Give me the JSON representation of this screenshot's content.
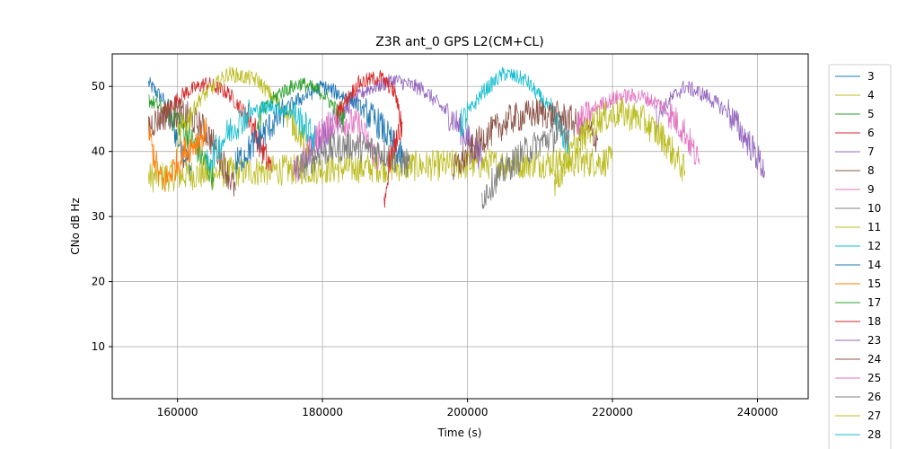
{
  "chart_data": {
    "type": "line",
    "title": "Z3R ant_0 GPS L2(CM+CL)",
    "xlabel": "Time (s)",
    "ylabel": "CNo dB Hz",
    "xlim": [
      151000,
      247000
    ],
    "ylim": [
      2,
      55
    ],
    "xticks": [
      160000,
      180000,
      200000,
      220000,
      240000
    ],
    "xtick_labels": [
      "160000",
      "180000",
      "200000",
      "220000",
      "240000"
    ],
    "yticks": [
      10,
      20,
      30,
      40,
      50
    ],
    "ytick_labels": [
      "10",
      "20",
      "30",
      "40",
      "50"
    ],
    "grid": true,
    "legend_position": "right, outside plot",
    "series": [
      {
        "name": "3",
        "color": "#1f77b4",
        "points": [
          [
            156000,
            50.5
          ],
          [
            158000,
            48
          ],
          [
            160000,
            42
          ],
          [
            162000,
            37
          ]
        ]
      },
      {
        "name": "4",
        "color": "#bcbd22",
        "points": [
          [
            156000,
            36
          ],
          [
            170000,
            37
          ],
          [
            185000,
            37.5
          ],
          [
            200000,
            38
          ],
          [
            220000,
            38.5
          ]
        ]
      },
      {
        "name": "5",
        "color": "#2ca02c",
        "points": [
          [
            156000,
            48
          ],
          [
            160000,
            45
          ],
          [
            163000,
            40
          ],
          [
            165000,
            36
          ]
        ]
      },
      {
        "name": "6",
        "color": "#d62728",
        "points": [
          [
            158000,
            46
          ],
          [
            161000,
            49
          ],
          [
            164000,
            50.5
          ],
          [
            167000,
            49
          ],
          [
            170000,
            45
          ],
          [
            173000,
            37
          ]
        ]
      },
      {
        "name": "7",
        "color": "#9467bd",
        "points": [
          [
            178000,
            40
          ],
          [
            182000,
            45
          ],
          [
            186000,
            49.5
          ],
          [
            190000,
            51
          ],
          [
            194000,
            49.5
          ],
          [
            198000,
            45
          ],
          [
            202000,
            39
          ]
        ]
      },
      {
        "name": "8",
        "color": "#8c564b",
        "points": [
          [
            156000,
            44
          ],
          [
            158000,
            45.5
          ],
          [
            160000,
            46
          ],
          [
            162000,
            45
          ],
          [
            164000,
            43
          ],
          [
            166000,
            39
          ],
          [
            168000,
            34
          ]
        ]
      },
      {
        "name": "9",
        "color": "#e377c2",
        "points": [
          [
            176000,
            36
          ],
          [
            179000,
            42
          ],
          [
            182000,
            45
          ],
          [
            185000,
            44
          ],
          [
            188000,
            38
          ]
        ]
      },
      {
        "name": "10",
        "color": "#7f7f7f",
        "points": [
          [
            176000,
            37
          ],
          [
            180000,
            40
          ],
          [
            184000,
            41
          ],
          [
            188000,
            40
          ],
          [
            192000,
            38
          ]
        ]
      },
      {
        "name": "11",
        "color": "#bcbd22",
        "points": [
          [
            160000,
            42
          ],
          [
            163000,
            48
          ],
          [
            167000,
            52
          ],
          [
            171000,
            51
          ],
          [
            175000,
            46
          ],
          [
            178000,
            41
          ]
        ]
      },
      {
        "name": "12",
        "color": "#17becf",
        "points": [
          [
            199000,
            44
          ],
          [
            202000,
            49
          ],
          [
            205000,
            52
          ],
          [
            208000,
            51
          ],
          [
            211000,
            47
          ],
          [
            214000,
            41
          ]
        ]
      },
      {
        "name": "14",
        "color": "#1f77b4",
        "points": [
          [
            168000,
            38
          ],
          [
            172000,
            43
          ],
          [
            176000,
            47.5
          ],
          [
            180000,
            50
          ],
          [
            184000,
            48
          ],
          [
            188000,
            44
          ],
          [
            191000,
            39
          ]
        ]
      },
      {
        "name": "15",
        "color": "#ff7f0e",
        "points": [
          [
            156000,
            43
          ],
          [
            157500,
            36
          ],
          [
            158000,
            35
          ],
          [
            161000,
            40
          ],
          [
            164000,
            43
          ]
        ]
      },
      {
        "name": "17",
        "color": "#2ca02c",
        "points": [
          [
            171000,
            45
          ],
          [
            174000,
            49
          ],
          [
            177000,
            50.5
          ],
          [
            180000,
            49
          ],
          [
            183000,
            45
          ]
        ]
      },
      {
        "name": "18",
        "color": "#d62728",
        "points": [
          [
            182000,
            46
          ],
          [
            185000,
            50.5
          ],
          [
            188000,
            51.5
          ],
          [
            190000,
            49
          ],
          [
            191000,
            44
          ],
          [
            189500,
            40
          ],
          [
            188500,
            33
          ]
        ]
      },
      {
        "name": "23",
        "color": "#9467bd",
        "points": [
          [
            226000,
            45
          ],
          [
            228000,
            48
          ],
          [
            230000,
            50
          ],
          [
            233000,
            48.5
          ],
          [
            236000,
            46
          ],
          [
            239000,
            41
          ],
          [
            241000,
            37
          ]
        ]
      },
      {
        "name": "24",
        "color": "#8c564b",
        "points": [
          [
            198000,
            37
          ],
          [
            202000,
            42
          ],
          [
            206000,
            45
          ],
          [
            210000,
            46
          ],
          [
            214000,
            45
          ],
          [
            218000,
            42
          ]
        ]
      },
      {
        "name": "25",
        "color": "#e377c2",
        "points": [
          [
            215000,
            44
          ],
          [
            218000,
            47
          ],
          [
            221000,
            48.5
          ],
          [
            224000,
            48.5
          ],
          [
            227000,
            47
          ],
          [
            230000,
            43
          ],
          [
            232000,
            38
          ]
        ]
      },
      {
        "name": "26",
        "color": "#7f7f7f",
        "points": [
          [
            202000,
            33
          ],
          [
            204000,
            36
          ],
          [
            206000,
            38
          ],
          [
            208000,
            40
          ],
          [
            211000,
            42
          ],
          [
            214000,
            43
          ]
        ]
      },
      {
        "name": "27",
        "color": "#bcbd22",
        "points": [
          [
            212000,
            35
          ],
          [
            215000,
            41
          ],
          [
            218000,
            45
          ],
          [
            221000,
            46
          ],
          [
            224000,
            45
          ],
          [
            227000,
            42
          ],
          [
            230000,
            37
          ]
        ]
      },
      {
        "name": "28",
        "color": "#17becf",
        "points": [
          [
            164000,
            38
          ],
          [
            167000,
            43
          ],
          [
            170000,
            46
          ],
          [
            173000,
            47
          ],
          [
            176000,
            46
          ],
          [
            179000,
            42
          ]
        ]
      }
    ]
  }
}
